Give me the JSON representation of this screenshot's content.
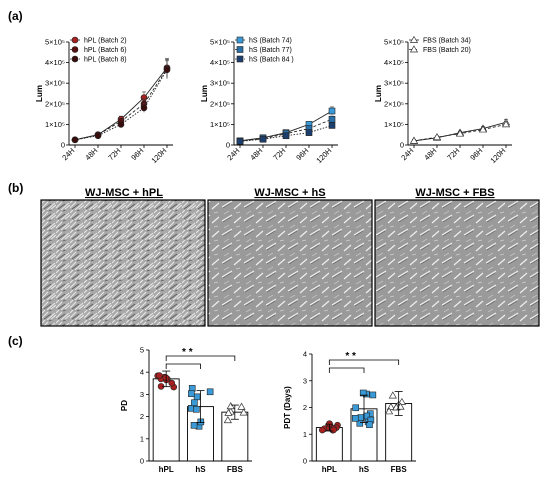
{
  "panels": {
    "a": "(a)",
    "b": "(b)",
    "c": "(c)"
  },
  "colors": {
    "hpl": "#a82020",
    "hs": "#3a9ad8",
    "fbs": "#ffffff",
    "bg": "#ffffff"
  },
  "chart_data": [
    {
      "type": "line",
      "ylabel": "Lum",
      "categories": [
        "24H",
        "48H",
        "72H",
        "96H",
        "120H"
      ],
      "yticks": [
        "0",
        "1×10⁵",
        "2×10⁵",
        "3×10⁵",
        "4×10⁵",
        "5×10⁵"
      ],
      "ylim": [
        0,
        500000
      ],
      "series": [
        {
          "name": "hPL (Batch 2)",
          "values": [
            25000,
            50000,
            125000,
            230000,
            375000
          ]
        },
        {
          "name": "hPL (Batch 6)",
          "values": [
            25000,
            50000,
            115000,
            200000,
            370000
          ]
        },
        {
          "name": "hPL (Batch 8)",
          "values": [
            25000,
            45000,
            100000,
            180000,
            365000
          ]
        }
      ]
    },
    {
      "type": "line",
      "ylabel": "Lum",
      "categories": [
        "24H",
        "48H",
        "72H",
        "96H",
        "120H"
      ],
      "yticks": [
        "0",
        "1×10⁵",
        "2×10⁵",
        "3×10⁵",
        "4×10⁵",
        "5×10⁵"
      ],
      "ylim": [
        0,
        500000
      ],
      "series": [
        {
          "name": "hS (Batch 74)",
          "values": [
            20000,
            35000,
            60000,
            100000,
            165000
          ]
        },
        {
          "name": "hS (Batch 77)",
          "values": [
            20000,
            30000,
            55000,
            80000,
            125000
          ]
        },
        {
          "name": "hS (Batch 84 )",
          "values": [
            18000,
            28000,
            45000,
            60000,
            95000
          ]
        }
      ]
    },
    {
      "type": "line",
      "ylabel": "Lum",
      "categories": [
        "24H",
        "48H",
        "72H",
        "96H",
        "120H"
      ],
      "yticks": [
        "0",
        "1×10⁵",
        "2×10⁵",
        "3×10⁵",
        "4×10⁵",
        "5×10⁵"
      ],
      "ylim": [
        0,
        500000
      ],
      "series": [
        {
          "name": "FBS (Batch 34)",
          "values": [
            20000,
            35000,
            60000,
            80000,
            110000
          ]
        },
        {
          "name": "FBS (Batch 20)",
          "values": [
            20000,
            38000,
            55000,
            75000,
            100000
          ]
        }
      ]
    },
    {
      "type": "bar",
      "ylabel": "PD",
      "categories": [
        "hPL",
        "hS",
        "FBS"
      ],
      "values": [
        3.7,
        2.45,
        2.2
      ],
      "ylim": [
        0,
        5
      ],
      "annotation": "* *"
    },
    {
      "type": "bar",
      "ylabel": "PDT (Days)",
      "categories": [
        "hPL",
        "hS",
        "FBS"
      ],
      "values": [
        1.25,
        1.95,
        2.15
      ],
      "ylim": [
        0,
        4
      ],
      "annotation": "* *"
    }
  ],
  "micrographs": [
    "WJ-MSC + hPL",
    "WJ-MSC + hS",
    "WJ-MSC + FBS"
  ]
}
